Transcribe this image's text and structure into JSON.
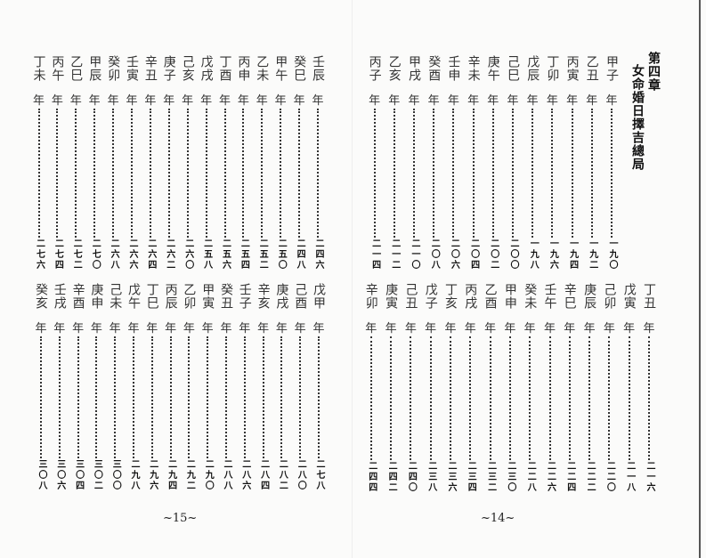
{
  "header": {
    "chapter": "第四章",
    "title": "女命婚日擇吉總局"
  },
  "year_suffix": "年",
  "pages": {
    "right": {
      "page_number": "~14~",
      "top_row": [
        {
          "name": "甲子",
          "page": "一九〇"
        },
        {
          "name": "乙丑",
          "page": "一九二"
        },
        {
          "name": "丙寅",
          "page": "一九四"
        },
        {
          "name": "丁卯",
          "page": "一九六"
        },
        {
          "name": "戊辰",
          "page": "一九八"
        },
        {
          "name": "己巳",
          "page": "二〇〇"
        },
        {
          "name": "庚午",
          "page": "二〇二"
        },
        {
          "name": "辛未",
          "page": "二〇四"
        },
        {
          "name": "壬申",
          "page": "二〇六"
        },
        {
          "name": "癸酉",
          "page": "二〇八"
        },
        {
          "name": "甲戌",
          "page": "二一〇"
        },
        {
          "name": "乙亥",
          "page": "二一二"
        },
        {
          "name": "丙子",
          "page": "二一四"
        }
      ],
      "bottom_row": [
        {
          "name": "丁丑",
          "page": "二一六"
        },
        {
          "name": "戊寅",
          "page": "二一八"
        },
        {
          "name": "己卯",
          "page": "二二〇"
        },
        {
          "name": "庚辰",
          "page": "二二二"
        },
        {
          "name": "辛巳",
          "page": "二二四"
        },
        {
          "name": "壬午",
          "page": "二二六"
        },
        {
          "name": "癸未",
          "page": "二二八"
        },
        {
          "name": "甲申",
          "page": "二三〇"
        },
        {
          "name": "乙酉",
          "page": "二三二"
        },
        {
          "name": "丙戌",
          "page": "二三四"
        },
        {
          "name": "丁亥",
          "page": "二三六"
        },
        {
          "name": "戊子",
          "page": "二三八"
        },
        {
          "name": "己丑",
          "page": "二四〇"
        },
        {
          "name": "庚寅",
          "page": "二四二"
        },
        {
          "name": "辛卯",
          "page": "二四四"
        }
      ]
    },
    "left": {
      "page_number": "~15~",
      "top_row": [
        {
          "name": "壬辰",
          "page": "二四六"
        },
        {
          "name": "癸巳",
          "page": "二四八"
        },
        {
          "name": "甲午",
          "page": "二五〇"
        },
        {
          "name": "乙未",
          "page": "二五二"
        },
        {
          "name": "丙申",
          "page": "二五四"
        },
        {
          "name": "丁酉",
          "page": "二五六"
        },
        {
          "name": "戊戌",
          "page": "二五八"
        },
        {
          "name": "己亥",
          "page": "二六〇"
        },
        {
          "name": "庚子",
          "page": "二六二"
        },
        {
          "name": "辛丑",
          "page": "二六四"
        },
        {
          "name": "壬寅",
          "page": "二六六"
        },
        {
          "name": "癸卯",
          "page": "二六八"
        },
        {
          "name": "甲辰",
          "page": "二七〇"
        },
        {
          "name": "乙巳",
          "page": "二七二"
        },
        {
          "name": "丙午",
          "page": "二七四"
        },
        {
          "name": "丁未",
          "page": "二七六"
        }
      ],
      "bottom_row": [
        {
          "name": "戊甲",
          "page": "二七八"
        },
        {
          "name": "己酉",
          "page": "二八〇"
        },
        {
          "name": "庚戌",
          "page": "二八二"
        },
        {
          "name": "辛亥",
          "page": "二八四"
        },
        {
          "name": "壬子",
          "page": "二八六"
        },
        {
          "name": "癸丑",
          "page": "二八八"
        },
        {
          "name": "甲寅",
          "page": "二九〇"
        },
        {
          "name": "乙卯",
          "page": "二九二"
        },
        {
          "name": "丙辰",
          "page": "二九四"
        },
        {
          "name": "丁巳",
          "page": "二九六"
        },
        {
          "name": "戊午",
          "page": "二九八"
        },
        {
          "name": "己未",
          "page": "三〇〇"
        },
        {
          "name": "庚申",
          "page": "三〇二"
        },
        {
          "name": "辛酉",
          "page": "三〇四"
        },
        {
          "name": "壬戌",
          "page": "三〇六"
        },
        {
          "name": "癸亥",
          "page": "三〇八"
        }
      ]
    }
  }
}
